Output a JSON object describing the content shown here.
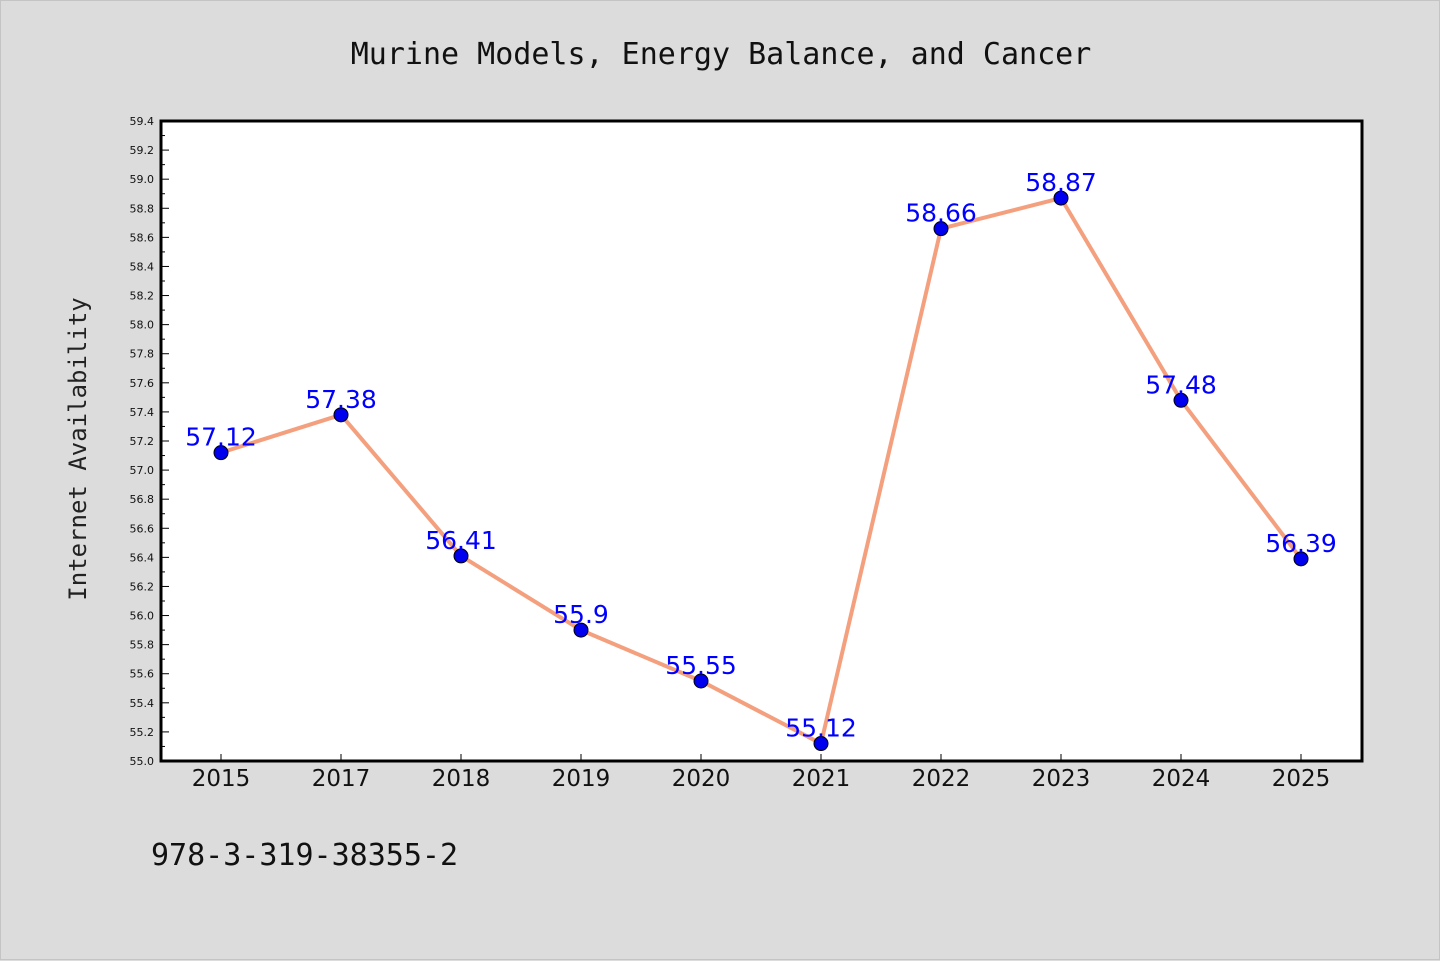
{
  "chart_data": {
    "type": "line",
    "title": "Murine Models, Energy Balance, and Cancer",
    "ylabel": "Internet Availability",
    "xlabel": "",
    "categories": [
      "2015",
      "2017",
      "2018",
      "2019",
      "2020",
      "2021",
      "2022",
      "2023",
      "2024",
      "2025"
    ],
    "values": [
      57.12,
      57.38,
      56.41,
      55.9,
      55.55,
      55.12,
      58.66,
      58.87,
      57.48,
      56.39
    ],
    "data_labels": [
      "57.12",
      "57.38",
      "56.41",
      "55.9",
      "55.55",
      "55.12",
      "58.66",
      "58.87",
      "57.48",
      "56.39"
    ],
    "ylim": [
      55.0,
      59.4
    ],
    "yticks": [
      "55.0",
      "55.2",
      "55.4",
      "55.6",
      "55.8",
      "56.0",
      "56.2",
      "56.4",
      "56.6",
      "56.8",
      "57.0",
      "57.2",
      "57.4",
      "57.6",
      "57.8",
      "58.0",
      "58.2",
      "58.4",
      "58.6",
      "58.8",
      "59.0",
      "59.2",
      "59.4"
    ],
    "grid": false,
    "colors": {
      "line": "#f4a07e",
      "marker": "#0000ee",
      "label": "#0000ff",
      "background": "#dcdcdc",
      "plot_area": "#ffffff"
    }
  },
  "footer": {
    "isbn": "978-3-319-38355-2"
  }
}
